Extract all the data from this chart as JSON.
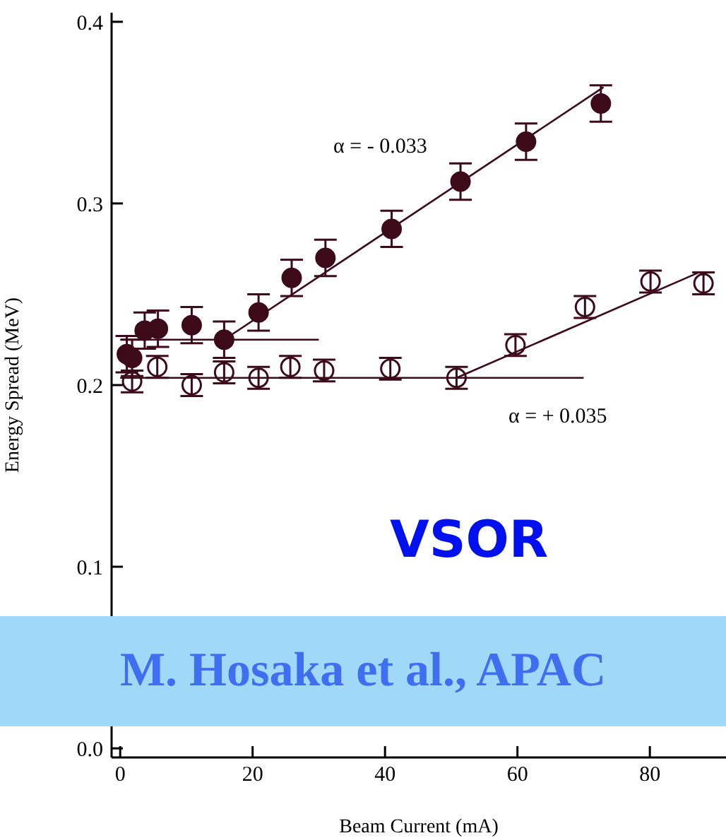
{
  "chart_data": {
    "type": "scatter",
    "xlabel": "Beam Current (mA)",
    "ylabel": "Energy Spread (MeV)",
    "xlim": [
      -1.3,
      91.5
    ],
    "ylim": [
      -0.005,
      0.405
    ],
    "xticks": [
      0,
      20,
      40,
      60,
      80
    ],
    "yticks": [
      {
        "value": 0,
        "label": "0.0"
      },
      {
        "value": 0.1,
        "label": "0.1"
      },
      {
        "value": 0.2,
        "label": "0.2"
      },
      {
        "value": 0.3,
        "label": "0.3"
      },
      {
        "value": 0.4,
        "label": "0.4"
      }
    ],
    "grid": false,
    "legend": false,
    "series": [
      {
        "marker": "circle",
        "color": "#3d0a1a",
        "x": [
          1,
          1.8,
          3.7,
          5.7,
          10.8,
          15.7,
          20.9,
          25.9,
          31.0,
          41.0,
          51.4,
          61.3,
          72.6
        ],
        "values": [
          0.217,
          0.215,
          0.23,
          0.231,
          0.233,
          0.225,
          0.24,
          0.259,
          0.27,
          0.286,
          0.312,
          0.334,
          0.355
        ],
        "errors": [
          0.01,
          0.01,
          0.01,
          0.01,
          0.01,
          0.01,
          0.01,
          0.01,
          0.01,
          0.01,
          0.01,
          0.01,
          0.01
        ]
      },
      {
        "marker": "circle",
        "color": "#3d0a1a",
        "x": [
          1.8,
          5.6,
          10.8,
          15.7,
          20.9,
          25.7,
          30.8,
          40.8,
          50.8,
          59.7,
          70.2,
          80.1,
          88.1
        ],
        "values": [
          0.202,
          0.21,
          0.2,
          0.207,
          0.204,
          0.21,
          0.208,
          0.209,
          0.204,
          0.222,
          0.243,
          0.257,
          0.256
        ],
        "errors": [
          0.006,
          0.006,
          0.006,
          0.006,
          0.006,
          0.006,
          0.006,
          0.006,
          0.006,
          0.006,
          0.006,
          0.006,
          0.006
        ]
      },
      {
        "type": "line",
        "color": "#3d0a1a",
        "x": [
          0,
          30
        ],
        "values": [
          0.225,
          0.225
        ]
      },
      {
        "type": "line",
        "color": "#3d0a1a",
        "x": [
          15.7,
          73.0
        ],
        "values": [
          0.225,
          0.364
        ]
      },
      {
        "type": "line",
        "color": "#3d0a1a",
        "x": [
          0,
          70
        ],
        "values": [
          0.204,
          0.204
        ]
      },
      {
        "type": "line",
        "color": "#3d0a1a",
        "x": [
          50.8,
          87.4
        ],
        "values": [
          0.204,
          0.262
        ]
      }
    ],
    "annotations": [
      "α = - 0.033",
      "α = + 0.035",
      "VSOR",
      "M. Hosaka et al., APAC"
    ]
  }
}
